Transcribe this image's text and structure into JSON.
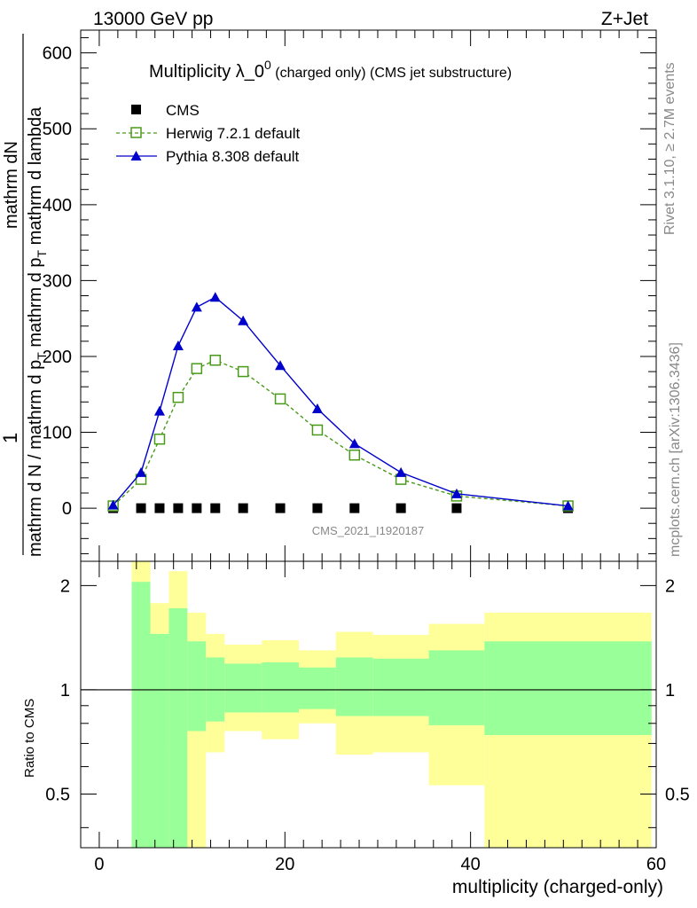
{
  "header": {
    "left": "13000 GeV pp",
    "right": "Z+Jet"
  },
  "chart_data": {
    "type": "line",
    "title_main": "Multiplicity λ_0",
    "title_sup": "0",
    "title_tail": "(charged only) (CMS jet substructure)",
    "ylabel_numerator": "mathrm dN",
    "ylabel_denominator": "mathrm d N / mathrm d p",
    "ylabel_denominator_sub": "T",
    "ylabel_denominator_tail": "mathrm d p",
    "ylabel_denominator_tail_sub": "T",
    "ylabel_denominator_tail2": "mathrm d lambda",
    "ylabel_one": "1",
    "ylabel_frac": "mathrm d N / mathrm d p",
    "ylabel_line1": "mathrm dN",
    "ylabel_line2": "mathrm d p",
    "ylabel_line2_tail": "mathrm d lambda",
    "ylabel_T": "T",
    "ylabel_line3": "1",
    "ylabel_line4": "mathrm d N / mathrm d p",
    "ylabel_line4_tail": "mathrm d p",
    "xlabel": "multiplicity (charged-only)",
    "ratio_ylabel": "Ratio to CMS",
    "xlim": [
      -2,
      60
    ],
    "ylim": [
      -70,
      630
    ],
    "ratio_ylim": [
      0.35,
      2.35
    ],
    "x_ticks": [
      "0",
      "20",
      "40",
      "60"
    ],
    "y_ticks": [
      "0",
      "100",
      "200",
      "300",
      "400",
      "500",
      "600"
    ],
    "ratio_ticks": [
      "0.5",
      "1",
      "2"
    ],
    "watermark": "CMS_2021_I1920187",
    "side_text_top": "Rivet 3.1.10, ≥ 2.7M events",
    "side_text_bottom": "mcplots.cern.ch [arXiv:1306.3436]",
    "legend_position": "top-left",
    "series": [
      {
        "name": "CMS",
        "color": "#000000",
        "marker": "square-filled",
        "x": [
          1.5,
          4.5,
          6.5,
          8.5,
          10.5,
          12.5,
          15.5,
          19.5,
          23.5,
          27.5,
          32.5,
          38.5,
          50.5
        ],
        "values": [
          0,
          0,
          0,
          0,
          0,
          0,
          0,
          0,
          0,
          0,
          0,
          0,
          0
        ]
      },
      {
        "name": "Herwig 7.2.1 default",
        "color": "#4a9a1a",
        "marker": "square-open",
        "dashed": true,
        "x": [
          1.5,
          4.5,
          6.5,
          8.5,
          10.5,
          12.5,
          15.5,
          19.5,
          23.5,
          27.5,
          32.5,
          38.5,
          50.5
        ],
        "values": [
          3,
          38,
          91,
          146,
          184,
          195,
          180,
          144,
          103,
          70,
          38,
          16,
          3
        ]
      },
      {
        "name": "Pythia 8.308 default",
        "color": "#0000cc",
        "marker": "triangle-filled",
        "dashed": false,
        "x": [
          1.5,
          4.5,
          6.5,
          8.5,
          10.5,
          12.5,
          15.5,
          19.5,
          23.5,
          27.5,
          32.5,
          38.5,
          50.5
        ],
        "values": [
          4,
          47,
          128,
          214,
          265,
          278,
          247,
          188,
          131,
          85,
          47,
          19,
          3
        ]
      }
    ],
    "ratio_bands": [
      {
        "lo": 3.5,
        "hi": 5.5,
        "green": [
          0.35,
          2.05
        ],
        "yellow": [
          0.35,
          2.35
        ]
      },
      {
        "lo": 5.5,
        "hi": 7.5,
        "green": [
          0.35,
          1.45
        ],
        "yellow": [
          0.68,
          1.78
        ]
      },
      {
        "lo": 7.5,
        "hi": 9.5,
        "green": [
          0.35,
          1.72
        ],
        "yellow": [
          0.35,
          2.2
        ]
      },
      {
        "lo": 9.5,
        "hi": 11.5,
        "green": [
          0.76,
          1.38
        ],
        "yellow": [
          0.35,
          1.67
        ]
      },
      {
        "lo": 11.5,
        "hi": 13.5,
        "green": [
          0.81,
          1.24
        ],
        "yellow": [
          0.66,
          1.45
        ]
      },
      {
        "lo": 13.5,
        "hi": 17.5,
        "green": [
          0.86,
          1.19
        ],
        "yellow": [
          0.76,
          1.35
        ]
      },
      {
        "lo": 17.5,
        "hi": 21.5,
        "green": [
          0.86,
          1.2
        ],
        "yellow": [
          0.72,
          1.39
        ]
      },
      {
        "lo": 21.5,
        "hi": 25.5,
        "green": [
          0.88,
          1.16
        ],
        "yellow": [
          0.8,
          1.3
        ]
      },
      {
        "lo": 25.5,
        "hi": 29.5,
        "green": [
          0.84,
          1.24
        ],
        "yellow": [
          0.65,
          1.47
        ]
      },
      {
        "lo": 29.5,
        "hi": 35.5,
        "green": [
          0.84,
          1.23
        ],
        "yellow": [
          0.66,
          1.44
        ]
      },
      {
        "lo": 35.5,
        "hi": 41.5,
        "green": [
          0.79,
          1.3
        ],
        "yellow": [
          0.53,
          1.55
        ]
      },
      {
        "lo": 41.5,
        "hi": 59.5,
        "green": [
          0.74,
          1.38
        ],
        "yellow": [
          0.35,
          1.67
        ]
      }
    ]
  }
}
